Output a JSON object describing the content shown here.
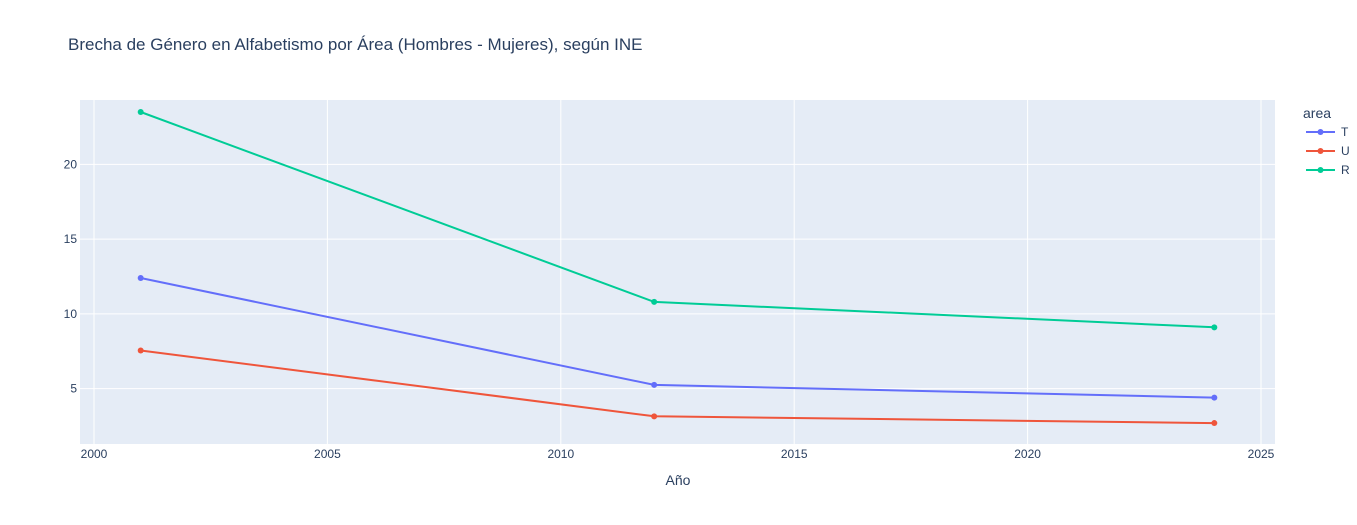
{
  "chart_data": {
    "type": "line",
    "title": "Brecha de Género en Alfabetismo por Área (Hombres - Mujeres), según INE",
    "xlabel": "Año",
    "ylabel": "",
    "xlim": [
      1999.7,
      2025.3
    ],
    "ylim": [
      1.3,
      24.3
    ],
    "xticks": [
      2000,
      2005,
      2010,
      2015,
      2020,
      2025
    ],
    "yticks": [
      5,
      10,
      15,
      20
    ],
    "grid": true,
    "legend_title": "area",
    "legend_position": "right",
    "series": [
      {
        "name": "T",
        "color": "#636efa",
        "x": [
          2001,
          2012,
          2024
        ],
        "values": [
          12.4,
          5.25,
          4.4
        ]
      },
      {
        "name": "U",
        "color": "#ef553b",
        "x": [
          2001,
          2012,
          2024
        ],
        "values": [
          7.55,
          3.15,
          2.7
        ]
      },
      {
        "name": "R",
        "color": "#00cc96",
        "x": [
          2001,
          2012,
          2024
        ],
        "values": [
          23.5,
          10.8,
          9.1
        ]
      }
    ]
  },
  "colors": {
    "plot_bg": "#e5ecf6",
    "grid": "#ffffff",
    "text": "#2a3f5f"
  }
}
